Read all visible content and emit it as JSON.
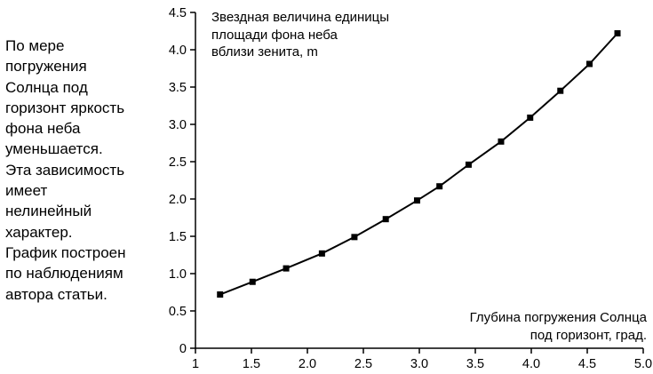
{
  "caption": "По мере\nпогружения\nСолнца под\nгоризонт яркость\nфона неба\nуменьшается.\nЭта зависимость\nимеет\nнелинейный\nхарактер.\nГрафик построен\nпо наблюдениям\nавтора статьи.",
  "chart_data": {
    "type": "line",
    "ylabel": "Звездная величина единицы\nплощади фона неба\nвблизи зенита, m",
    "xlabel": "Глубина погружения Солнца\nпод горизонт, град.",
    "x_ticks": [
      "1",
      "1.5",
      "2.0",
      "2.5",
      "3.0",
      "3.5",
      "4.0",
      "4.5",
      "5.0"
    ],
    "y_ticks": [
      "0",
      "0.5",
      "1.0",
      "1.5",
      "2.0",
      "2.5",
      "3.0",
      "3.5",
      "4.0",
      "4.5"
    ],
    "xlim": [
      1,
      5
    ],
    "ylim": [
      0,
      4.5
    ],
    "grid": false,
    "marker": "square",
    "line_color": "#000000",
    "series": [
      {
        "x": [
          1.22,
          1.51,
          1.81,
          2.13,
          2.42,
          2.7,
          2.98,
          3.18,
          3.44,
          3.73,
          3.99,
          4.26,
          4.52,
          4.77
        ],
        "y": [
          0.72,
          0.89,
          1.07,
          1.27,
          1.49,
          1.73,
          1.98,
          2.17,
          2.46,
          2.77,
          3.09,
          3.45,
          3.81,
          4.22
        ]
      }
    ]
  }
}
